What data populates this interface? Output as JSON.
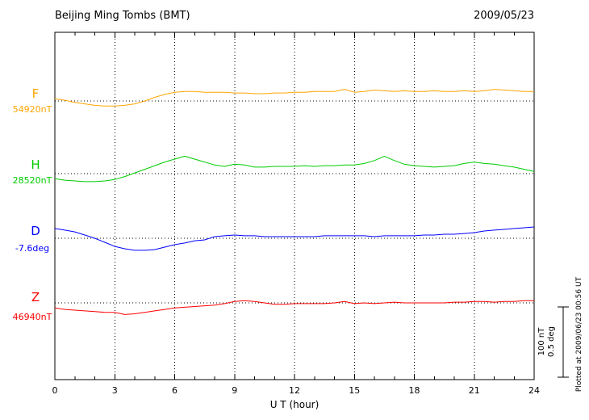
{
  "header": {
    "station": "Beijing Ming Tombs (BMT)",
    "date": "2009/05/23"
  },
  "axis": {
    "xlabel": "U T (hour)",
    "ticks": [
      0,
      3,
      6,
      9,
      12,
      15,
      18,
      21,
      24
    ]
  },
  "scale_bar": {
    "label_nt": "100 nT",
    "label_deg": "0.5 deg"
  },
  "footer": {
    "plotted_at": "Plotted at 2009/06/23 00:56 UT"
  },
  "chart_data": {
    "type": "line",
    "title": "Beijing Ming Tombs (BMT)",
    "date": "2009/05/23",
    "xlabel": "U T (hour)",
    "x_range": [
      0,
      24
    ],
    "x_tick_labels": [
      0,
      3,
      6,
      9,
      12,
      15,
      18,
      21,
      24
    ],
    "grid": "dotted vertical lines every 3 hours; dotted horizontal baseline per trace",
    "scale": {
      "nT_per_division": 100,
      "deg_per_division": 0.5
    },
    "x": [
      0,
      0.5,
      1,
      1.5,
      2,
      2.5,
      3,
      3.5,
      4,
      4.5,
      5,
      5.5,
      6,
      6.5,
      7,
      7.5,
      8,
      8.5,
      9,
      9.5,
      10,
      10.5,
      11,
      11.5,
      12,
      12.5,
      13,
      13.5,
      14,
      14.5,
      15,
      15.5,
      16,
      16.5,
      17,
      17.5,
      18,
      18.5,
      19,
      19.5,
      20,
      20.5,
      21,
      21.5,
      22,
      22.5,
      23,
      23.5,
      24
    ],
    "series": [
      {
        "name": "F",
        "label": "F",
        "baseline_label": "54920nT",
        "baseline": 54920,
        "unit": "nT",
        "color": "#FFA500",
        "values": [
          54923,
          54921,
          54918,
          54916,
          54914,
          54913,
          54913,
          54914,
          54916,
          54920,
          54925,
          54929,
          54932,
          54933,
          54933,
          54932,
          54932,
          54932,
          54931,
          54931,
          54930,
          54930,
          54931,
          54931,
          54932,
          54932,
          54933,
          54933,
          54933,
          54936,
          54932,
          54933,
          54935,
          54934,
          54933,
          54934,
          54933,
          54933,
          54934,
          54933,
          54933,
          54934,
          54933,
          54934,
          54936,
          54935,
          54934,
          54933,
          54933
        ]
      },
      {
        "name": "H",
        "label": "H",
        "baseline_label": "28520nT",
        "baseline": 28520,
        "unit": "nT",
        "color": "#00CC00",
        "values": [
          28513,
          28511,
          28510,
          28509,
          28509,
          28510,
          28512,
          28516,
          28521,
          28526,
          28531,
          28536,
          28540,
          28544,
          28540,
          28536,
          28532,
          28530,
          28533,
          28532,
          28529,
          28529,
          28530,
          28530,
          28530,
          28531,
          28530,
          28531,
          28531,
          28532,
          28532,
          28534,
          28538,
          28544,
          28538,
          28533,
          28531,
          28530,
          28529,
          28530,
          28531,
          28534,
          28536,
          28534,
          28533,
          28531,
          28529,
          28526,
          28523
        ]
      },
      {
        "name": "D",
        "label": "D",
        "baseline_label": "-7.6deg",
        "baseline": -7.6,
        "unit": "deg",
        "color": "#0000FF",
        "values": [
          -7.533,
          -7.544,
          -7.556,
          -7.578,
          -7.6,
          -7.628,
          -7.656,
          -7.672,
          -7.683,
          -7.683,
          -7.678,
          -7.661,
          -7.644,
          -7.633,
          -7.617,
          -7.611,
          -7.589,
          -7.583,
          -7.578,
          -7.583,
          -7.583,
          -7.589,
          -7.589,
          -7.589,
          -7.589,
          -7.589,
          -7.589,
          -7.583,
          -7.583,
          -7.583,
          -7.583,
          -7.583,
          -7.589,
          -7.583,
          -7.583,
          -7.583,
          -7.583,
          -7.578,
          -7.578,
          -7.572,
          -7.572,
          -7.567,
          -7.561,
          -7.55,
          -7.544,
          -7.539,
          -7.533,
          -7.528,
          -7.522
        ]
      },
      {
        "name": "Z",
        "label": "Z",
        "baseline_label": "46940nT",
        "baseline": 46940,
        "unit": "nT",
        "color": "#FF0000",
        "values": [
          46933,
          46931,
          46930,
          46929,
          46928,
          46927,
          46927,
          46924,
          46925,
          46927,
          46929,
          46931,
          46933,
          46934,
          46935,
          46936,
          46937,
          46939,
          46942,
          46943,
          46942,
          46940,
          46938,
          46938,
          46939,
          46939,
          46939,
          46939,
          46940,
          46942,
          46939,
          46940,
          46939,
          46940,
          46941,
          46940,
          46940,
          46940,
          46940,
          46940,
          46941,
          46941,
          46942,
          46942,
          46941,
          46942,
          46942,
          46943,
          46943
        ]
      }
    ]
  }
}
